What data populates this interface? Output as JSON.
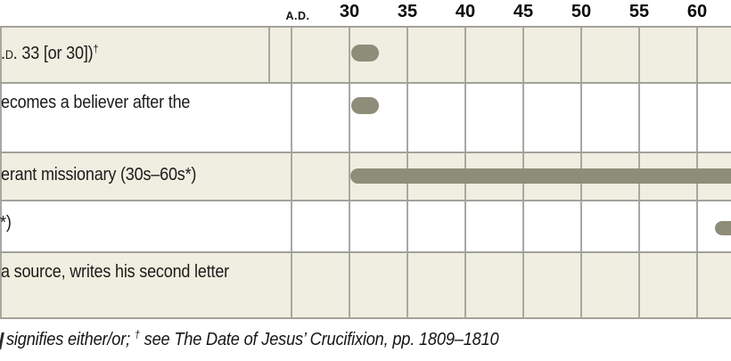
{
  "header": {
    "era_label": "A.D.",
    "ticks": [
      "30",
      "35",
      "40",
      "45",
      "50",
      "55",
      "60"
    ]
  },
  "rows": [
    {
      "sc": ".d.",
      "text": " 33 [or 30])",
      "sup": "†"
    },
    {
      "text": "ecomes a believer after the"
    },
    {
      "text": "erant missionary (30s–60s*)"
    },
    {
      "text": "*)"
    },
    {
      "text": "a source, writes his second letter"
    }
  ],
  "footer": {
    "part1": "signifies either/or; ",
    "dagger": "†",
    "part2": " see The Date of Jesus’ Crucifixion, pp. 1809–1810"
  },
  "colors": {
    "row_stripe": "#efeee0",
    "bar": "#8d8d79",
    "vline": "#a8a8a2",
    "hline": "#a2a29c",
    "text": "#1b1b1b"
  },
  "chart_data": {
    "type": "bar",
    "variant": "horizontal-timeline",
    "era_label": "A.D.",
    "x_ticks": [
      30,
      35,
      40,
      45,
      50,
      55,
      60
    ],
    "x_visible_range": [
      25,
      63
    ],
    "grid": true,
    "rows": [
      {
        "label_fragment": ".d. 33 [or 30])†",
        "span_years": [
          30.2,
          32.6
        ],
        "clipped_right": false
      },
      {
        "label_fragment": "ecomes a believer after the",
        "span_years": [
          30.2,
          32.6
        ],
        "clipped_right": false
      },
      {
        "label_fragment": "erant missionary (30s–60s*)",
        "span_years": [
          30.15,
          63.5
        ],
        "clipped_right": true
      },
      {
        "label_fragment": "*)",
        "span_years": [
          61.6,
          63.5
        ],
        "clipped_right": true
      },
      {
        "label_fragment": "a source, writes his second letter",
        "span_years": null,
        "clipped_right": false
      }
    ],
    "footnote_fragment": "signifies either/or; † see The Date of Jesus’ Crucifixion, pp. 1809–1810",
    "legend_position": "none",
    "bar_color": "#8d8d79",
    "row_stripe_color": "#efeee0"
  }
}
